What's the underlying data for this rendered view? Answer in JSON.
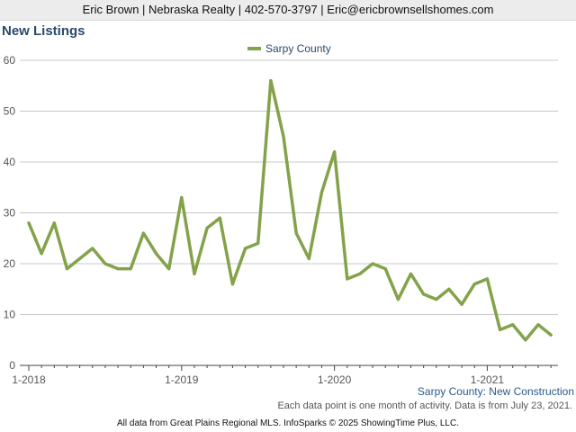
{
  "header": {
    "contact": "Eric Brown | Nebraska Realty | 402-570-3797 | Eric@ericbrownsellshomes.com"
  },
  "chart_title": "New Listings",
  "subtitle": "Sarpy County: New Construction",
  "footnote": "Each data point is one month of activity. Data is from July 23, 2021.",
  "footer": "All data from Great Plains Regional MLS. InfoSparks © 2025 ShowingTime Plus, LLC.",
  "chart_data": {
    "type": "line",
    "title": "New Listings",
    "x_start": "2018-01",
    "x_labels": [
      "1-2018",
      "1-2019",
      "1-2020",
      "1-2021"
    ],
    "y_ticks": [
      0,
      10,
      20,
      30,
      40,
      50,
      60
    ],
    "ylim": [
      0,
      60
    ],
    "legend_position": "top-center",
    "grid": true,
    "series": [
      {
        "name": "Sarpy County",
        "color": "#84a24a",
        "values": [
          28,
          22,
          28,
          19,
          21,
          23,
          20,
          19,
          19,
          26,
          22,
          19,
          33,
          18,
          27,
          29,
          16,
          23,
          24,
          56,
          45,
          26,
          21,
          34,
          42,
          17,
          18,
          20,
          19,
          13,
          18,
          14,
          13,
          15,
          12,
          16,
          17,
          7,
          8,
          5,
          8,
          6
        ]
      }
    ]
  }
}
